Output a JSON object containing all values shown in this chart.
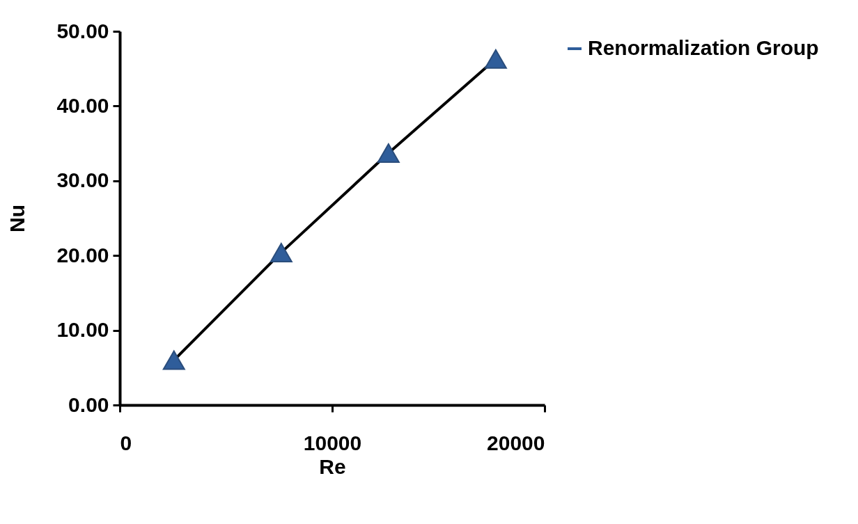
{
  "chart_data": {
    "type": "line",
    "xlabel": "Re",
    "ylabel": "Nu",
    "x": [
      2550,
      7600,
      12650,
      17700
    ],
    "series": [
      {
        "name": "Renormalization Group",
        "color": "#2f5d9a",
        "values": [
          6.0,
          20.4,
          33.7,
          46.3
        ]
      }
    ],
    "xlim": [
      0,
      20000
    ],
    "xticks": [
      0,
      10000,
      20000
    ],
    "ylim": [
      0,
      50
    ],
    "yticks": [
      {
        "value": 0,
        "label": "0.00"
      },
      {
        "value": 10,
        "label": "10.00"
      },
      {
        "value": 20,
        "label": "20.00"
      },
      {
        "value": 30,
        "label": "30.00"
      },
      {
        "value": 40,
        "label": "40.00"
      },
      {
        "value": 50,
        "label": "50.00"
      }
    ],
    "marker": "triangle",
    "line_style": "solid",
    "grid": false,
    "legend": "right"
  }
}
